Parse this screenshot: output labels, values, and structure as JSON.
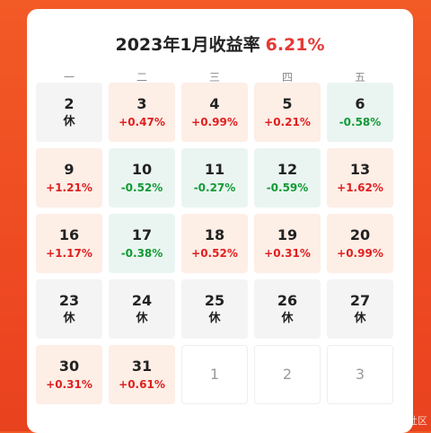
{
  "header": {
    "title": "2023年1月收益率",
    "rate": "6.21%"
  },
  "weekdays": [
    "一",
    "二",
    "三",
    "四",
    "五"
  ],
  "rows": [
    [
      {
        "day": "2",
        "sub": "休",
        "type": "rest"
      },
      {
        "day": "3",
        "sub": "+0.47%",
        "type": "up"
      },
      {
        "day": "4",
        "sub": "+0.99%",
        "type": "up"
      },
      {
        "day": "5",
        "sub": "+0.21%",
        "type": "up"
      },
      {
        "day": "6",
        "sub": "-0.58%",
        "type": "down"
      }
    ],
    [
      {
        "day": "9",
        "sub": "+1.21%",
        "type": "up"
      },
      {
        "day": "10",
        "sub": "-0.52%",
        "type": "down"
      },
      {
        "day": "11",
        "sub": "-0.27%",
        "type": "down"
      },
      {
        "day": "12",
        "sub": "-0.59%",
        "type": "down"
      },
      {
        "day": "13",
        "sub": "+1.62%",
        "type": "up"
      }
    ],
    [
      {
        "day": "16",
        "sub": "+1.17%",
        "type": "up"
      },
      {
        "day": "17",
        "sub": "-0.38%",
        "type": "down"
      },
      {
        "day": "18",
        "sub": "+0.52%",
        "type": "up"
      },
      {
        "day": "19",
        "sub": "+0.31%",
        "type": "up"
      },
      {
        "day": "20",
        "sub": "+0.99%",
        "type": "up"
      }
    ],
    [
      {
        "day": "23",
        "sub": "休",
        "type": "rest"
      },
      {
        "day": "24",
        "sub": "休",
        "type": "rest"
      },
      {
        "day": "25",
        "sub": "休",
        "type": "rest"
      },
      {
        "day": "26",
        "sub": "休",
        "type": "rest"
      },
      {
        "day": "27",
        "sub": "休",
        "type": "rest"
      }
    ],
    [
      {
        "day": "30",
        "sub": "+0.31%",
        "type": "up"
      },
      {
        "day": "31",
        "sub": "+0.61%",
        "type": "up"
      },
      {
        "day": "1",
        "sub": "",
        "type": "next"
      },
      {
        "day": "2",
        "sub": "",
        "type": "next"
      },
      {
        "day": "3",
        "sub": "",
        "type": "next"
      }
    ]
  ],
  "watermark": "@稀土掘金技术社区",
  "colors": {
    "up": "#e02020",
    "down": "#129a35",
    "background": "#ee4a22"
  }
}
